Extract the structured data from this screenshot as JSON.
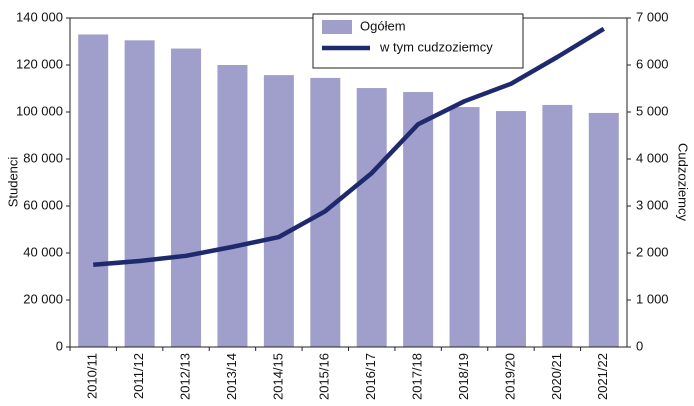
{
  "chart_data": {
    "type": "bar",
    "categories": [
      "2010/11",
      "2011/12",
      "2012/13",
      "2013/14",
      "2014/15",
      "2015/16",
      "2016/17",
      "2017/18",
      "2018/19",
      "2019/20",
      "2020/21",
      "2021/22"
    ],
    "series": [
      {
        "name": "Ogółem",
        "type": "bar",
        "color": "#a09fcb",
        "values": [
          133000,
          130500,
          127000,
          120000,
          115700,
          114500,
          110200,
          108500,
          102100,
          100400,
          103000,
          99600
        ]
      },
      {
        "name": "w tym cudzoziemcy",
        "type": "line",
        "axis": "y2",
        "color": "#1f2a6e",
        "values": [
          1750,
          1830,
          1940,
          2130,
          2340,
          2890,
          3700,
          4740,
          5230,
          5600,
          6170,
          6770
        ]
      }
    ],
    "y_label": "Studenci",
    "y2_label": "Cudzoziemcy",
    "ylim": [
      0,
      140000
    ],
    "yticks": [
      0,
      {
        "value": 20000,
        "label": "20 000"
      },
      {
        "value": 40000,
        "label": "40 000"
      },
      {
        "value": 60000,
        "label": "60 000"
      },
      {
        "value": 80000,
        "label": "80 000"
      },
      {
        "value": 100000,
        "label": "100 000"
      },
      {
        "value": 120000,
        "label": "120 000"
      },
      {
        "value": 140000,
        "label": "140 000"
      }
    ],
    "y2lim": [
      0,
      7000
    ],
    "y2ticks": [
      0,
      {
        "value": 1000,
        "label": "1 000"
      },
      {
        "value": 2000,
        "label": "2 000"
      },
      {
        "value": 3000,
        "label": "3 000"
      },
      {
        "value": 4000,
        "label": "4 000"
      },
      {
        "value": 5000,
        "label": "5 000"
      },
      {
        "value": 6000,
        "label": "6 000"
      },
      {
        "value": 7000,
        "label": "7 000"
      }
    ],
    "legend": "top-center"
  }
}
